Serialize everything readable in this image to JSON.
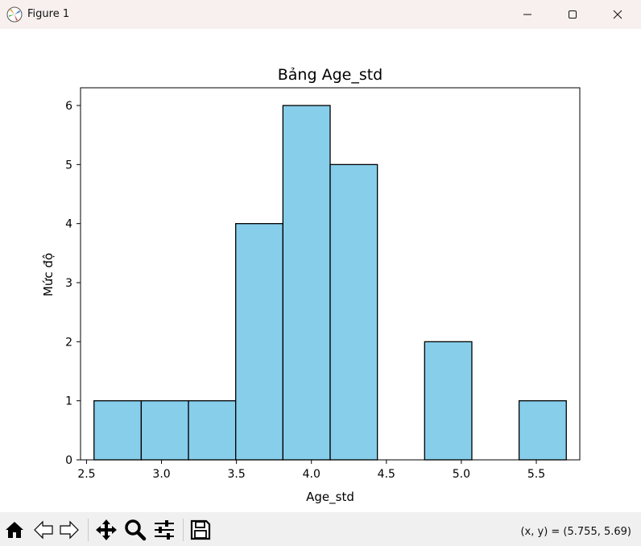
{
  "window": {
    "title": "Figure 1",
    "minimize_icon": "minimize-icon",
    "maximize_icon": "maximize-icon",
    "close_icon": "close-icon"
  },
  "toolbar": {
    "tools": [
      "home-icon",
      "back-icon",
      "forward-icon",
      "pan-icon",
      "zoom-icon",
      "configure-subplots-icon",
      "save-icon"
    ],
    "coords_text": "(x, y) = (5.755, 5.69)"
  },
  "colors": {
    "bar_fill": "#87ceeb",
    "bar_edge": "#000000",
    "titlebar_bg": "#f7f0ef",
    "toolbar_bg": "#f0f0f0"
  },
  "chart_data": {
    "type": "bar",
    "title": "Bảng Age_std",
    "xlabel": "Age_std",
    "ylabel": "Mức độ",
    "xlim": [
      2.46,
      5.79
    ],
    "ylim": [
      0,
      6.3
    ],
    "bin_edges": [
      2.55,
      2.865,
      3.18,
      3.495,
      3.81,
      4.125,
      4.44,
      4.755,
      5.07,
      5.385,
      5.7
    ],
    "values": [
      1,
      1,
      1,
      4,
      6,
      5,
      0,
      2,
      0,
      1
    ],
    "xticks": [
      "2.5",
      "3.0",
      "3.5",
      "4.0",
      "4.5",
      "5.0",
      "5.5"
    ],
    "xtick_values": [
      2.5,
      3.0,
      3.5,
      4.0,
      4.5,
      5.0,
      5.5
    ],
    "yticks": [
      "0",
      "1",
      "2",
      "3",
      "4",
      "5",
      "6"
    ],
    "ytick_values": [
      0,
      1,
      2,
      3,
      4,
      5,
      6
    ],
    "grid": false,
    "legend": "none"
  }
}
